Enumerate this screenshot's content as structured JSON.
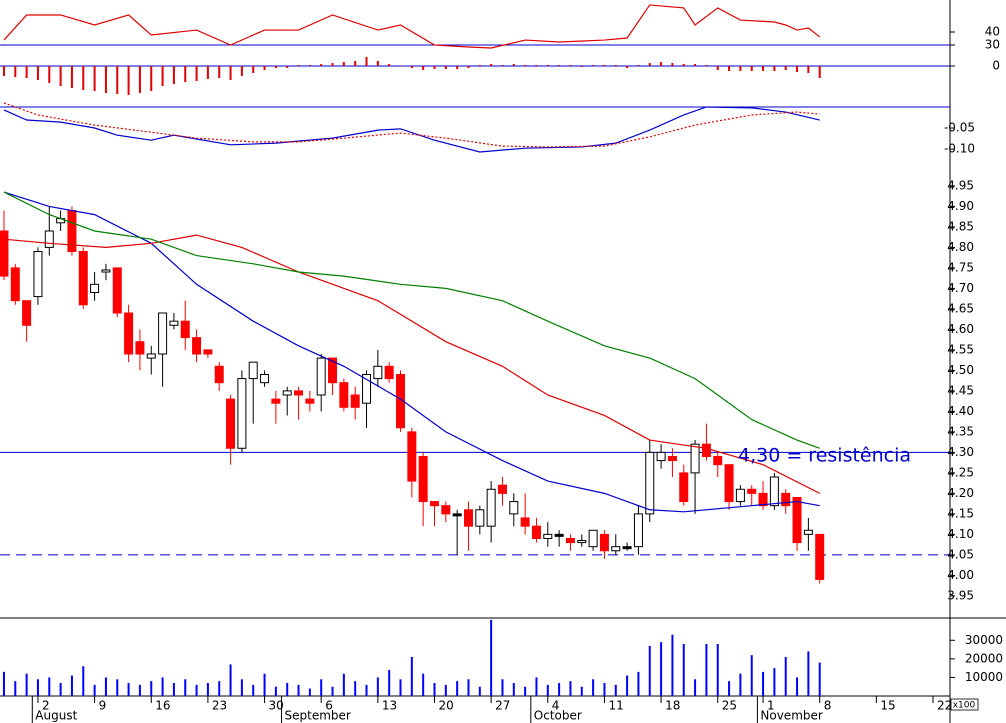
{
  "chart_data": [
    {
      "type": "line",
      "xlim": [
        -0.35,
        83.5
      ],
      "ylim": [
        20.8,
        64.6
      ],
      "yticks": [
        40,
        30
      ],
      "hlines": [
        {
          "value": 30,
          "color": "#0000cc",
          "style": "solid"
        }
      ],
      "series": [
        {
          "color": "#e00000",
          "style": "solid",
          "x": [
            0,
            2,
            5,
            8,
            11,
            13,
            17,
            20,
            23,
            26,
            29,
            33,
            35,
            38,
            41,
            43,
            46,
            49,
            53,
            55,
            57,
            60,
            61,
            63,
            65,
            68,
            69,
            70,
            71,
            72
          ],
          "values": [
            33.8,
            53.1,
            53.1,
            45.4,
            53.1,
            37.7,
            41.5,
            30,
            41.5,
            41.5,
            53.1,
            41.5,
            45.4,
            30,
            28.5,
            27.7,
            33.8,
            32.3,
            33.8,
            35.4,
            60.8,
            58.5,
            45.4,
            58.5,
            49.2,
            47.7,
            45.4,
            41.5,
            43.1,
            36.2
          ]
        }
      ]
    },
    {
      "type": "bar",
      "xlim": [
        -0.35,
        83.5
      ],
      "ylim": [
        -0.032,
        0.009
      ],
      "yticks": [
        0
      ],
      "color": "#e00000",
      "hlines": [
        {
          "value": 0,
          "color": "#0000cc",
          "style": "solid"
        }
      ],
      "x": [
        0,
        1,
        2,
        3,
        4,
        5,
        6,
        7,
        8,
        9,
        10,
        11,
        12,
        13,
        14,
        15,
        16,
        17,
        18,
        19,
        20,
        21,
        22,
        23,
        24,
        25,
        26,
        27,
        28,
        29,
        30,
        31,
        32,
        33,
        34,
        35,
        36,
        37,
        38,
        39,
        40,
        41,
        42,
        43,
        44,
        45,
        46,
        47,
        48,
        49,
        50,
        51,
        52,
        53,
        54,
        55,
        56,
        57,
        58,
        59,
        60,
        61,
        62,
        63,
        64,
        65,
        66,
        67,
        68,
        69,
        70,
        71,
        72
      ],
      "values": [
        -0.01,
        -0.011,
        -0.012,
        -0.014,
        -0.017,
        -0.02,
        -0.022,
        -0.024,
        -0.025,
        -0.027,
        -0.028,
        -0.029,
        -0.027,
        -0.025,
        -0.02,
        -0.018,
        -0.016,
        -0.015,
        -0.013,
        -0.012,
        -0.014,
        -0.01,
        -0.007,
        -0.004,
        -0.002,
        -0.002,
        0.001,
        0.001,
        0.002,
        0.003,
        0.004,
        0.005,
        0.009,
        0.005,
        0.002,
        0,
        -0.002,
        -0.004,
        -0.003,
        -0.003,
        -0.003,
        -0.002,
        0.001,
        0.002,
        0.001,
        0.002,
        0.001,
        0.001,
        0.001,
        0.001,
        0.001,
        -0.001,
        0.001,
        0.001,
        0.001,
        -0.002,
        0.001,
        0.003,
        0.004,
        0.003,
        0.002,
        0.002,
        0.001,
        -0.004,
        -0.005,
        -0.005,
        -0.005,
        -0.005,
        -0.005,
        -0.004,
        -0.006,
        -0.007,
        -0.012
      ]
    },
    {
      "type": "line",
      "xlim": [
        -0.35,
        83.5
      ],
      "ylim": [
        -0.138,
        0.0214
      ],
      "yticks": [
        -0.05,
        {
          "value": -0.1,
          "label": "-0.10"
        }
      ],
      "hlines": [
        {
          "value": 0,
          "color": "#0000cc",
          "style": "solid"
        }
      ],
      "series": [
        {
          "color": "#0000cc",
          "style": "solid",
          "x": [
            0,
            2,
            5,
            8,
            10,
            13,
            15,
            20,
            24,
            29,
            33,
            35,
            38,
            42,
            46,
            51,
            54,
            57,
            60,
            62,
            66,
            69,
            72
          ],
          "values": [
            -0.007,
            -0.031,
            -0.036,
            -0.05,
            -0.067,
            -0.079,
            -0.067,
            -0.09,
            -0.086,
            -0.074,
            -0.055,
            -0.052,
            -0.079,
            -0.107,
            -0.098,
            -0.095,
            -0.086,
            -0.055,
            -0.019,
            0,
            -0.002,
            -0.012,
            -0.031
          ]
        },
        {
          "color": "#e00000",
          "style": "dotted",
          "x": [
            0,
            3,
            8,
            13,
            17,
            22,
            26,
            30,
            35,
            39,
            44,
            48,
            53,
            57,
            61,
            66,
            70,
            72
          ],
          "values": [
            0.0095,
            -0.019,
            -0.043,
            -0.06,
            -0.074,
            -0.083,
            -0.083,
            -0.074,
            -0.062,
            -0.074,
            -0.093,
            -0.095,
            -0.093,
            -0.071,
            -0.043,
            -0.019,
            -0.012,
            -0.017
          ]
        }
      ]
    },
    {
      "type": "candlestick",
      "xlim": [
        -0.35,
        83.5
      ],
      "ylim": [
        3.896,
        5.001
      ],
      "yticks": [
        4.95,
        {
          "value": 4.9,
          "label": "4.90"
        },
        4.85,
        {
          "value": 4.8,
          "label": "4.80"
        },
        4.75,
        {
          "value": 4.7,
          "label": "4.70"
        },
        4.65,
        {
          "value": 4.6,
          "label": "4.60"
        },
        4.55,
        {
          "value": 4.5,
          "label": "4.50"
        },
        4.45,
        {
          "value": 4.4,
          "label": "4.40"
        },
        4.35,
        {
          "value": 4.3,
          "label": "4.30"
        },
        4.25,
        {
          "value": 4.2,
          "label": "4.20"
        },
        4.15,
        {
          "value": 4.1,
          "label": "4.10"
        },
        4.05,
        {
          "value": 4,
          "label": "4.00"
        },
        3.95
      ],
      "hlines": [
        {
          "value": 4.3,
          "color": "#0000cc",
          "style": "solid"
        },
        {
          "value": 4.05,
          "color": "#0000cc",
          "style": "dashed"
        }
      ],
      "annotation": "4,30 = resistência",
      "candles": {
        "up_color": "#ffffff",
        "down_color": "#ff0000",
        "flat_color": "#000000",
        "x": [
          0,
          1,
          2,
          3,
          4,
          5,
          6,
          7,
          8,
          9,
          10,
          11,
          12,
          13,
          14,
          15,
          16,
          17,
          18,
          19,
          20,
          21,
          22,
          23,
          24,
          25,
          26,
          27,
          28,
          29,
          30,
          31,
          32,
          33,
          34,
          35,
          36,
          37,
          38,
          39,
          40,
          41,
          42,
          43,
          44,
          45,
          46,
          47,
          48,
          49,
          50,
          51,
          52,
          53,
          54,
          55,
          56,
          57,
          58,
          59,
          60,
          61,
          62,
          63,
          64,
          65,
          66,
          67,
          68,
          69,
          70,
          71,
          72
        ],
        "open": [
          4.84,
          4.75,
          4.67,
          4.68,
          4.8,
          4.86,
          4.89,
          4.79,
          4.69,
          4.74,
          4.75,
          4.64,
          4.57,
          4.53,
          4.54,
          4.61,
          4.62,
          4.58,
          4.55,
          4.51,
          4.43,
          4.31,
          4.48,
          4.47,
          4.43,
          4.44,
          4.45,
          4.43,
          4.44,
          4.53,
          4.47,
          4.44,
          4.42,
          4.48,
          4.51,
          4.49,
          4.35,
          4.29,
          4.18,
          4.17,
          4.15,
          4.16,
          4.12,
          4.12,
          4.22,
          4.15,
          4.14,
          4.12,
          4.09,
          4.1,
          4.09,
          4.08,
          4.07,
          4.1,
          4.06,
          4.07,
          4.07,
          4.15,
          4.28,
          4.29,
          4.25,
          4.25,
          4.32,
          4.29,
          4.27,
          4.18,
          4.21,
          4.2,
          4.17,
          4.2,
          4.19,
          4.1,
          4.1
        ],
        "high": [
          4.89,
          4.76,
          4.67,
          4.8,
          4.9,
          4.89,
          4.9,
          4.8,
          4.74,
          4.76,
          4.75,
          4.66,
          4.6,
          4.56,
          4.64,
          4.64,
          4.67,
          4.6,
          4.55,
          4.52,
          4.44,
          4.5,
          4.52,
          4.5,
          4.45,
          4.46,
          4.46,
          4.45,
          4.54,
          4.53,
          4.48,
          4.46,
          4.5,
          4.55,
          4.52,
          4.5,
          4.36,
          4.3,
          4.18,
          4.18,
          4.16,
          4.18,
          4.17,
          4.23,
          4.24,
          4.2,
          4.2,
          4.14,
          4.13,
          4.11,
          4.1,
          4.1,
          4.11,
          4.11,
          4.1,
          4.08,
          4.17,
          4.33,
          4.32,
          4.31,
          4.27,
          4.33,
          4.37,
          4.3,
          4.27,
          4.22,
          4.22,
          4.23,
          4.25,
          4.21,
          4.19,
          4.14,
          4.1
        ],
        "low": [
          4.72,
          4.66,
          4.57,
          4.66,
          4.78,
          4.84,
          4.78,
          4.65,
          4.67,
          4.72,
          4.63,
          4.52,
          4.5,
          4.49,
          4.46,
          4.6,
          4.55,
          4.52,
          4.53,
          4.45,
          4.27,
          4.3,
          4.37,
          4.46,
          4.37,
          4.39,
          4.38,
          4.4,
          4.4,
          4.44,
          4.4,
          4.38,
          4.36,
          4.46,
          4.47,
          4.35,
          4.19,
          4.12,
          4.12,
          4.13,
          4.05,
          4.06,
          4.1,
          4.08,
          4.17,
          4.12,
          4.1,
          4.08,
          4.07,
          4.07,
          4.06,
          4.07,
          4.06,
          4.04,
          4.05,
          4.06,
          4.05,
          4.13,
          4.26,
          4.24,
          4.17,
          4.15,
          4.28,
          4.24,
          4.16,
          4.17,
          4.17,
          4.16,
          4.16,
          4.15,
          4.06,
          4.06,
          3.98
        ],
        "close": [
          4.73,
          4.67,
          4.61,
          4.79,
          4.84,
          4.87,
          4.79,
          4.66,
          4.71,
          4.745,
          4.64,
          4.54,
          4.54,
          4.54,
          4.64,
          4.62,
          4.58,
          4.54,
          4.54,
          4.47,
          4.31,
          4.48,
          4.52,
          4.49,
          4.42,
          4.45,
          4.44,
          4.42,
          4.53,
          4.47,
          4.41,
          4.41,
          4.49,
          4.51,
          4.48,
          4.36,
          4.23,
          4.18,
          4.17,
          4.15,
          4.15,
          4.12,
          4.16,
          4.21,
          4.2,
          4.18,
          4.12,
          4.09,
          4.1,
          4.1,
          4.08,
          4.085,
          4.11,
          4.06,
          4.07,
          4.07,
          4.15,
          4.3,
          4.3,
          4.28,
          4.18,
          4.32,
          4.29,
          4.27,
          4.18,
          4.21,
          4.2,
          4.17,
          4.24,
          4.17,
          4.08,
          4.11,
          3.99
        ]
      },
      "series": [
        {
          "color": "#0000cc",
          "style": "solid",
          "x": [
            0,
            4,
            8,
            13,
            17,
            22,
            26,
            30,
            35,
            39,
            44,
            48,
            53,
            57,
            60,
            66,
            70,
            72
          ],
          "values": [
            4.935,
            4.9,
            4.88,
            4.81,
            4.71,
            4.62,
            4.56,
            4.51,
            4.43,
            4.35,
            4.28,
            4.23,
            4.2,
            4.16,
            4.155,
            4.17,
            4.18,
            4.17
          ]
        },
        {
          "color": "#e00000",
          "style": "solid",
          "x": [
            0,
            4,
            9,
            13,
            17,
            21,
            26,
            33,
            39,
            44,
            48,
            53,
            57,
            62,
            67,
            72
          ],
          "values": [
            4.82,
            4.81,
            4.8,
            4.81,
            4.83,
            4.8,
            4.74,
            4.67,
            4.57,
            4.51,
            4.44,
            4.39,
            4.33,
            4.31,
            4.27,
            4.2
          ]
        },
        {
          "color": "#008000",
          "style": "solid",
          "x": [
            0,
            4,
            8,
            13,
            17,
            22,
            26,
            30,
            35,
            39,
            44,
            48,
            53,
            57,
            61,
            66,
            70,
            72
          ],
          "values": [
            4.935,
            4.88,
            4.84,
            4.82,
            4.78,
            4.76,
            4.74,
            4.73,
            4.71,
            4.7,
            4.67,
            4.62,
            4.56,
            4.53,
            4.48,
            4.38,
            4.33,
            4.31
          ]
        }
      ]
    },
    {
      "type": "bar",
      "xlim": [
        -0.35,
        83.5
      ],
      "ylim": [
        0,
        42000
      ],
      "yticks": [
        30000,
        20000,
        10000
      ],
      "color": "#0000ff",
      "scale_note": "x100",
      "x": [
        0,
        1,
        2,
        3,
        4,
        5,
        6,
        7,
        8,
        9,
        10,
        11,
        12,
        13,
        14,
        15,
        16,
        17,
        18,
        19,
        20,
        21,
        22,
        23,
        24,
        25,
        26,
        27,
        28,
        29,
        30,
        31,
        32,
        33,
        34,
        35,
        36,
        37,
        38,
        39,
        40,
        41,
        42,
        43,
        44,
        45,
        46,
        47,
        48,
        49,
        50,
        51,
        52,
        53,
        54,
        55,
        56,
        57,
        58,
        59,
        60,
        61,
        62,
        63,
        64,
        65,
        66,
        67,
        68,
        69,
        70,
        71,
        72
      ],
      "values": [
        13000,
        8000,
        12000,
        9000,
        10000,
        7000,
        11000,
        16000,
        6000,
        10000,
        9000,
        7000,
        6000,
        8000,
        10000,
        7000,
        9000,
        6000,
        7000,
        8000,
        17000,
        9000,
        6000,
        12000,
        5000,
        7000,
        6000,
        4000,
        9000,
        5000,
        12000,
        8000,
        6000,
        10000,
        14000,
        9000,
        21000,
        12000,
        7000,
        6000,
        8000,
        9000,
        5000,
        41000,
        9000,
        7000,
        5000,
        10000,
        6000,
        7000,
        8000,
        5000,
        9000,
        7000,
        6000,
        11000,
        13000,
        27000,
        29000,
        33000,
        28000,
        9000,
        28000,
        28000,
        8000,
        12000,
        22000,
        13000,
        15000,
        21000,
        10000,
        24000,
        18000
      ],
      "xticks": [
        {
          "value": 3,
          "label": "2"
        },
        {
          "value": 8,
          "label": "9"
        },
        {
          "value": 13,
          "label": "16"
        },
        {
          "value": 18,
          "label": "23"
        },
        {
          "value": 23,
          "label": "30"
        },
        {
          "value": 28,
          "label": "6"
        },
        {
          "value": 33,
          "label": "13"
        },
        {
          "value": 38,
          "label": "20"
        },
        {
          "value": 43,
          "label": "27"
        },
        {
          "value": 48,
          "label": "4"
        },
        {
          "value": 53,
          "label": "11"
        },
        {
          "value": 58,
          "label": "18"
        },
        {
          "value": 63,
          "label": "25"
        },
        {
          "value": 67,
          "label": "1"
        },
        {
          "value": 72,
          "label": "8"
        },
        {
          "value": 77,
          "label": "15"
        },
        {
          "value": 82,
          "label": "22"
        }
      ],
      "months": [
        {
          "value": 2.5,
          "label": "August"
        },
        {
          "value": 24.5,
          "label": "September"
        },
        {
          "value": 46.5,
          "label": "October"
        },
        {
          "value": 66.5,
          "label": "November"
        }
      ]
    }
  ]
}
